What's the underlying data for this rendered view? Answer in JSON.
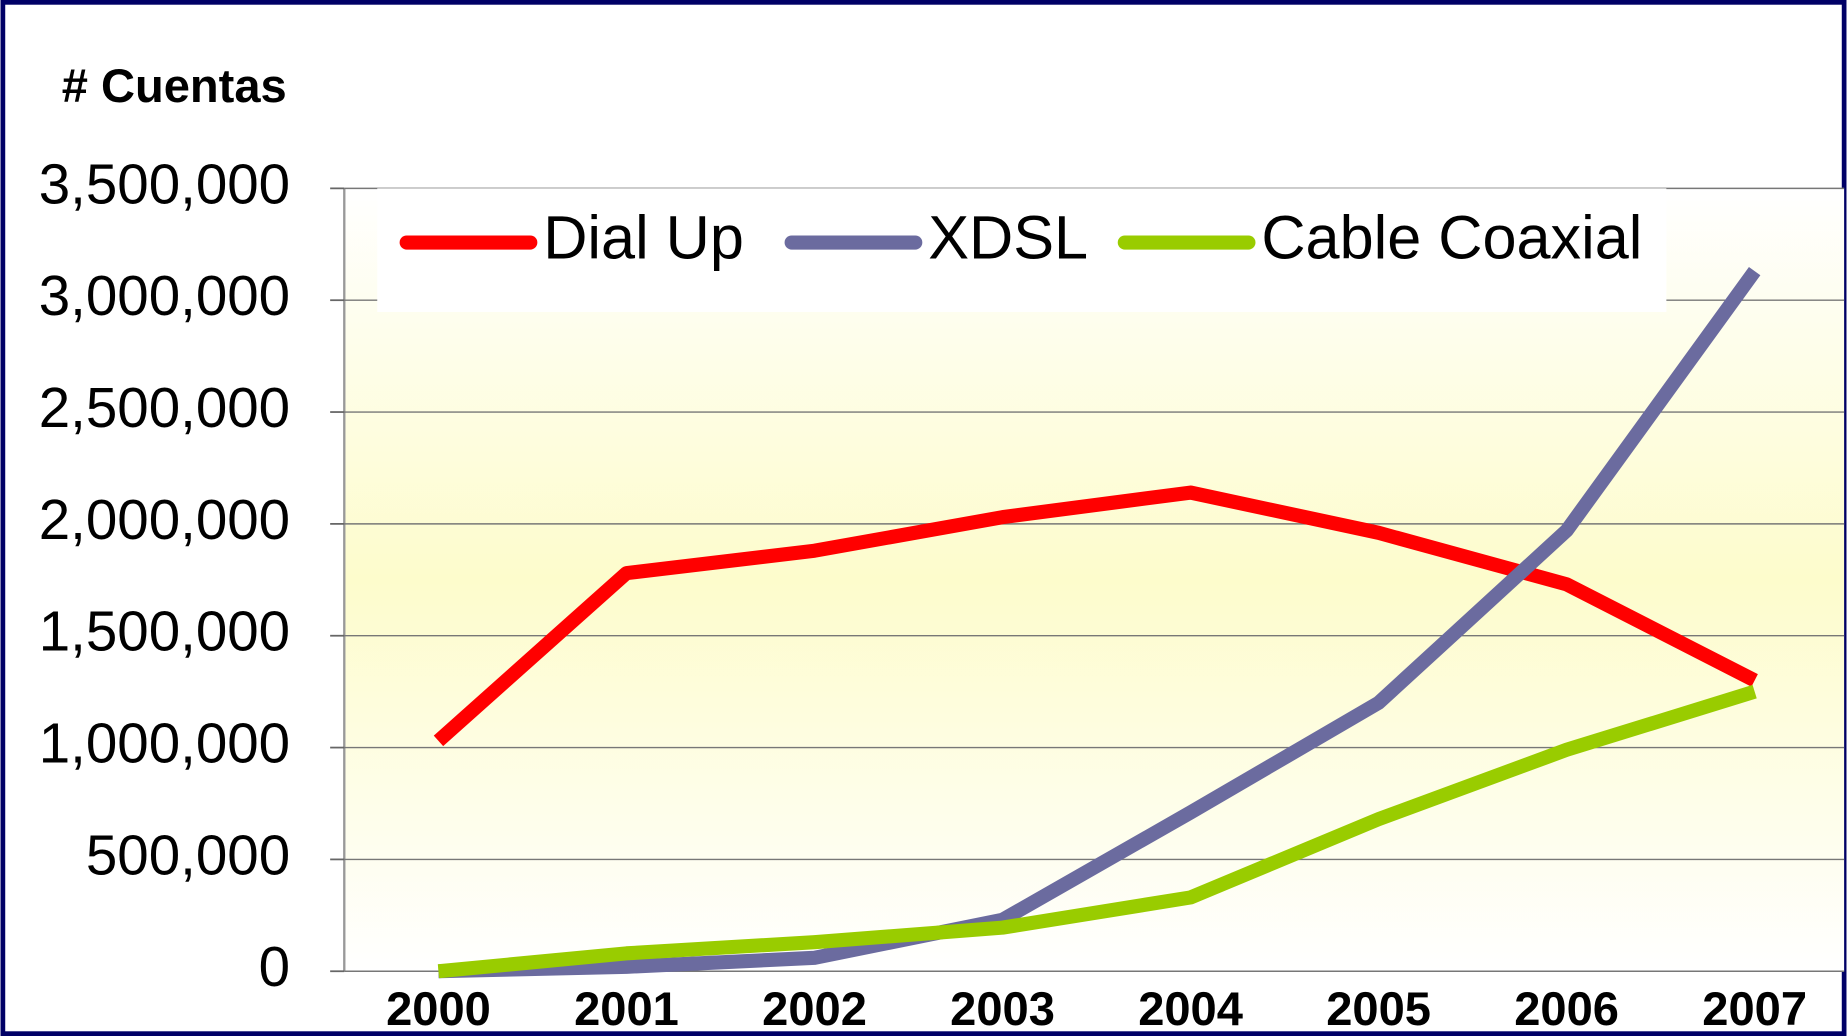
{
  "chart_data": {
    "type": "line",
    "y_label": "# Cuentas",
    "categories": [
      "2000",
      "2001",
      "2002",
      "2003",
      "2004",
      "2005",
      "2006",
      "2007"
    ],
    "series": [
      {
        "name": "Dial Up",
        "color": "#ff0000",
        "values": [
          1030000,
          1780000,
          1880000,
          2030000,
          2140000,
          1960000,
          1730000,
          1300000
        ]
      },
      {
        "name": "XDSL",
        "color": "#6b6b9f",
        "values": [
          0,
          20000,
          60000,
          230000,
          710000,
          1200000,
          1970000,
          3130000
        ]
      },
      {
        "name": "Cable Coaxial",
        "color": "#99cc00",
        "values": [
          0,
          80000,
          130000,
          195000,
          330000,
          680000,
          990000,
          1250000
        ]
      }
    ],
    "ylim": [
      0,
      3500000
    ],
    "yticks": [
      0,
      {
        "value": 500000,
        "label": "500,000"
      },
      {
        "value": 1000000,
        "label": "1,000,000"
      },
      {
        "value": 1500000,
        "label": "1,500,000"
      },
      {
        "value": 2000000,
        "label": "2,000,000"
      },
      {
        "value": 2500000,
        "label": "2,500,000"
      },
      {
        "value": 3000000,
        "label": "3,000,000"
      },
      {
        "value": 3500000,
        "label": "3,500,000"
      }
    ],
    "grid": true,
    "legend": "top"
  }
}
